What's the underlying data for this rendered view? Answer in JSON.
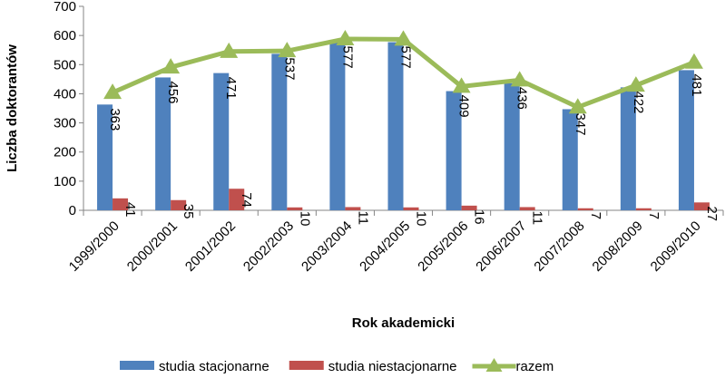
{
  "chart_data": {
    "type": "bar-line",
    "categories": [
      "1999/2000",
      "2000/2001",
      "2001/2002",
      "2002/2003",
      "2003/2004",
      "2004/2005",
      "2005/2006",
      "2006/2007",
      "2007/2008",
      "2008/2009",
      "2009/2010"
    ],
    "y_label": "Liczba doktorantów",
    "x_label": "Rok akademicki",
    "ylim": [
      0,
      700
    ],
    "yticks": [
      0,
      100,
      200,
      300,
      400,
      500,
      600,
      700
    ],
    "series": [
      {
        "name": "studia stacjonarne",
        "color": "#4f81bd",
        "kind": "bar",
        "values": [
          363,
          456,
          471,
          537,
          577,
          577,
          409,
          436,
          347,
          422,
          481
        ]
      },
      {
        "name": "studia niestacjonarne",
        "color": "#c0504d",
        "kind": "bar",
        "values": [
          41,
          35,
          74,
          10,
          11,
          10,
          16,
          11,
          7,
          7,
          27
        ]
      },
      {
        "name": "razem",
        "color": "#9bbb59",
        "kind": "line",
        "values": [
          404,
          491,
          545,
          547,
          588,
          587,
          425,
          447,
          354,
          429,
          508
        ]
      }
    ]
  }
}
